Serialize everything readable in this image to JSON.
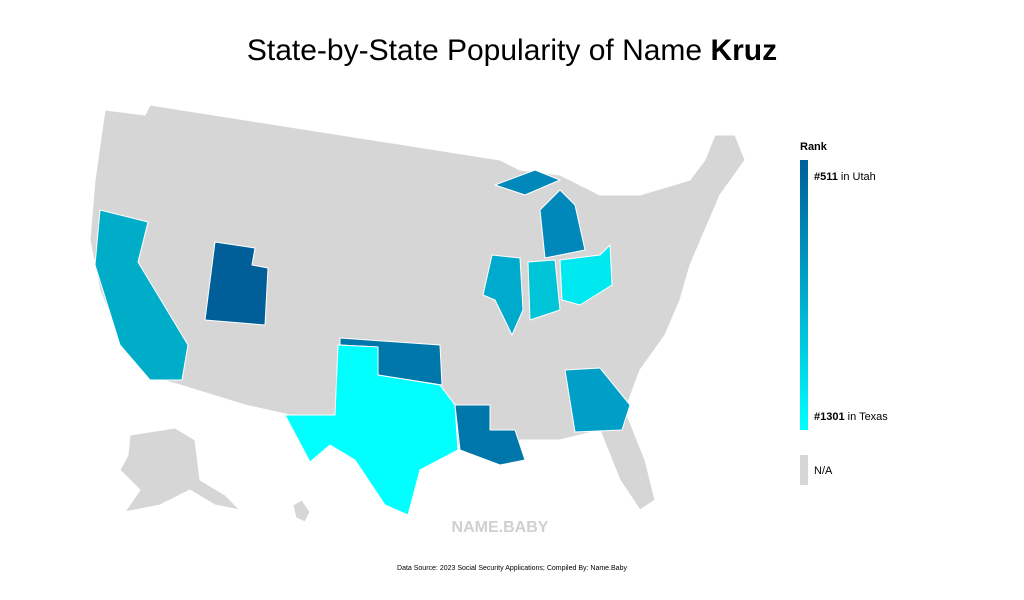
{
  "title": {
    "text": "State-by-State Popularity of Name ",
    "name": "Kruz"
  },
  "legend": {
    "title": "Rank",
    "top": {
      "rank": "#511",
      "state": " in Utah"
    },
    "bottom": {
      "rank": "#1301",
      "state": " in Texas"
    },
    "na": "N/A"
  },
  "watermark": "NAME.BABY",
  "source": "Data Source: 2023 Social Security Applications; Compiled By: Name.Baby"
}
